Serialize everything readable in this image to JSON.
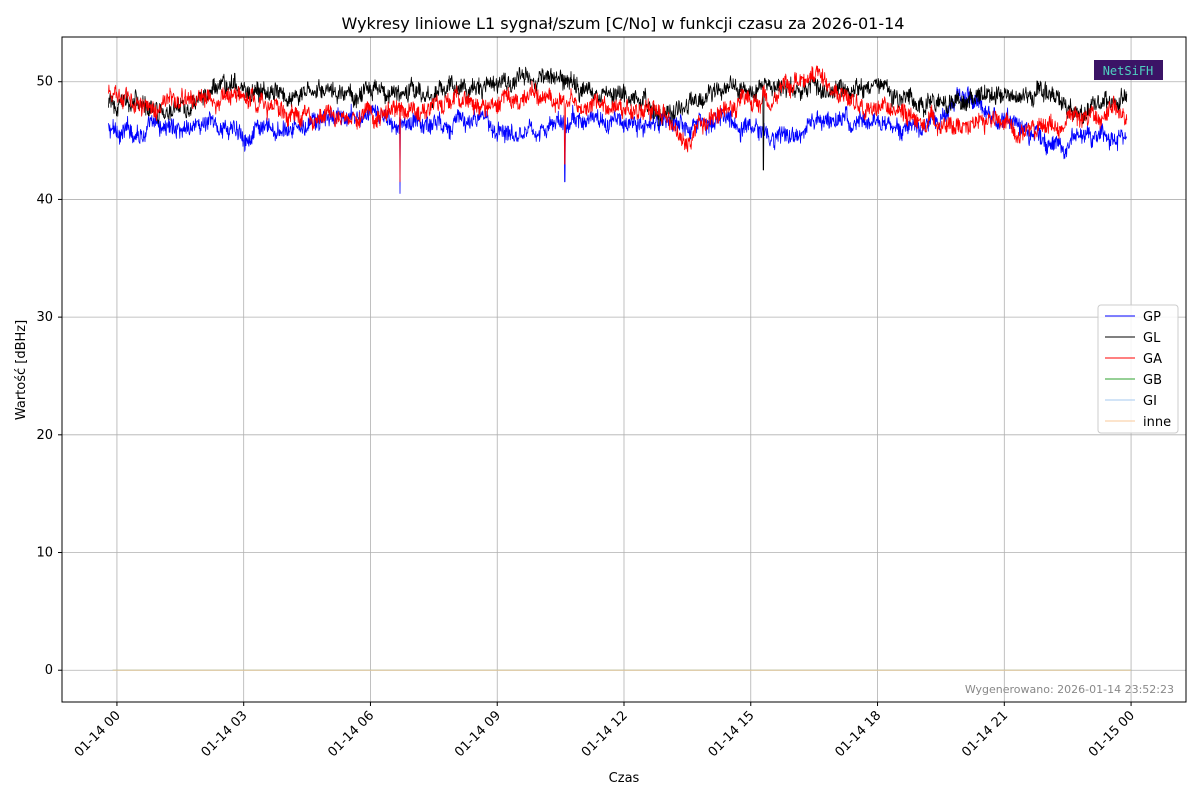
{
  "chart_data": {
    "type": "line",
    "title": "Wykresy liniowe L1 sygnał/szum [C/No] w funkcji czasu za 2026-01-14",
    "xlabel": "Czas",
    "ylabel": "Wartość [dBHz]",
    "x_tick_labels": [
      "01-14 00",
      "01-14 03",
      "01-14 06",
      "01-14 09",
      "01-14 12",
      "01-14 15",
      "01-14 18",
      "01-14 21",
      "01-15 00"
    ],
    "x_range_hours": [
      -1.3,
      25.3
    ],
    "y_ticks": [
      0,
      10,
      20,
      30,
      40,
      50
    ],
    "ylim": [
      -2.7,
      53.8
    ],
    "grid": true,
    "legend_position": "right",
    "x_unit": "hours since 2026-01-14 00:00",
    "series": [
      {
        "name": "GP",
        "color": "#0000ff",
        "x": [
          0,
          1,
          2,
          3,
          4,
          5,
          6,
          6.7,
          7,
          8,
          9,
          10,
          10.6,
          11,
          12,
          13,
          14,
          15,
          16,
          17,
          18,
          19,
          20,
          21,
          22,
          23,
          24
        ],
        "values": [
          45.8,
          46.0,
          46.5,
          45.8,
          45.5,
          46.8,
          47.0,
          40.5,
          46.5,
          46.8,
          46.2,
          46.0,
          41.5,
          46.8,
          46.5,
          46.2,
          47.0,
          45.8,
          45.5,
          46.8,
          46.5,
          46.0,
          48.5,
          46.8,
          44.5,
          45.5,
          45.3
        ]
      },
      {
        "name": "GL",
        "color": "#000000",
        "x": [
          0,
          1,
          2,
          3,
          4,
          5,
          6,
          7,
          8,
          9,
          10,
          11,
          12,
          13,
          14,
          15,
          15.3,
          16,
          17,
          18,
          19,
          20,
          21,
          22,
          23,
          24
        ],
        "values": [
          48.0,
          48.0,
          48.5,
          49.5,
          49.0,
          48.8,
          49.2,
          48.8,
          49.5,
          50.0,
          50.5,
          49.5,
          49.2,
          47.5,
          49.0,
          49.2,
          42.5,
          49.5,
          49.5,
          49.5,
          48.5,
          48.2,
          49.0,
          48.8,
          47.5,
          49.0
        ]
      },
      {
        "name": "GA",
        "color": "#ff0000",
        "x": [
          0,
          1,
          2,
          3,
          4,
          5,
          6,
          6.7,
          7,
          8,
          9,
          10,
          10.6,
          11,
          12,
          13,
          13.5,
          14,
          15,
          16,
          16.5,
          17,
          18,
          19,
          20,
          21,
          22,
          23,
          24
        ],
        "values": [
          48.8,
          48.0,
          49.0,
          48.5,
          47.2,
          47.0,
          47.5,
          41.5,
          47.2,
          48.5,
          48.0,
          49.0,
          43.0,
          48.0,
          47.5,
          47.2,
          45.0,
          46.8,
          48.2,
          49.5,
          50.5,
          48.5,
          47.8,
          46.5,
          46.8,
          46.5,
          46.0,
          47.0,
          47.5
        ]
      },
      {
        "name": "GB",
        "color": "#2ca02c",
        "x": [
          -0.1,
          24.0
        ],
        "values": [
          0,
          0
        ]
      },
      {
        "name": "GI",
        "color": "#a6c8ef",
        "x": [
          -0.1,
          24.0
        ],
        "values": [
          0,
          0
        ]
      },
      {
        "name": "inne",
        "color": "#f9c99a",
        "x": [
          -0.1,
          24.0
        ],
        "values": [
          0,
          0
        ]
      }
    ]
  },
  "footer": {
    "generated": "Wygenerowano: 2026-01-14 23:52:23"
  },
  "logo": {
    "text": "NetSiFH"
  }
}
